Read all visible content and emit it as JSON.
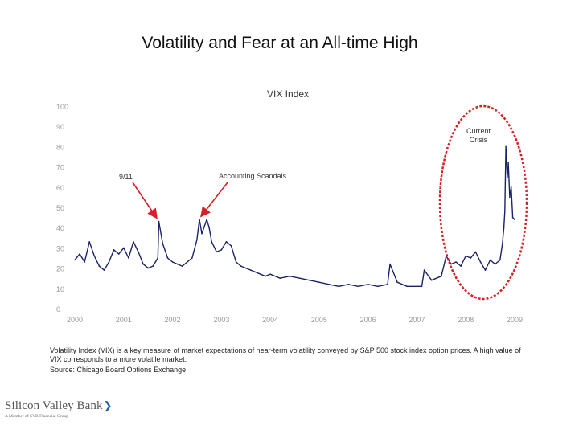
{
  "slide": {
    "title": "Volatility and Fear at an All-time High",
    "caption": "Volatility Index (VIX) is a key measure of market expectations of near-term volatility conveyed by S&P 500 stock index option prices.  A high value of VIX corresponds to a more volatile market.",
    "source": "Source: Chicago Board Options Exchange",
    "logo_name": "Silicon Valley Bank",
    "logo_tagline": "A Member of SVB Financial Group"
  },
  "colors": {
    "series_line": "#1a2366",
    "axis_text": "#9a9a9a",
    "arrow": "#d81f26",
    "highlight_ellipse": "#d81f26"
  },
  "chart_data": {
    "type": "line",
    "title": "VIX Index",
    "xlabel": "",
    "ylabel": "",
    "xlim": [
      2000.0,
      2009.0
    ],
    "ylim": [
      0,
      100
    ],
    "yticks": [
      0,
      10,
      20,
      30,
      40,
      50,
      60,
      70,
      80,
      90,
      100
    ],
    "xticks": [
      2000,
      2001,
      2002,
      2003,
      2004,
      2005,
      2006,
      2007,
      2008,
      2009
    ],
    "grid": false,
    "series": [
      {
        "x": [
          2000.0,
          2000.1,
          2000.2,
          2000.3,
          2000.4,
          2000.5,
          2000.6,
          2000.7,
          2000.8,
          2000.9,
          2001.0,
          2001.1,
          2001.2,
          2001.3,
          2001.4,
          2001.5,
          2001.6,
          2001.7,
          2001.72,
          2001.8,
          2001.9,
          2002.0,
          2002.1,
          2002.2,
          2002.3,
          2002.4,
          2002.5,
          2002.55,
          2002.6,
          2002.7,
          2002.75,
          2002.8,
          2002.9,
          2003.0,
          2003.1,
          2003.2,
          2003.3,
          2003.4,
          2003.5,
          2003.6,
          2003.7,
          2003.8,
          2003.9,
          2004.0,
          2004.2,
          2004.4,
          2004.6,
          2004.8,
          2005.0,
          2005.2,
          2005.4,
          2005.6,
          2005.8,
          2006.0,
          2006.2,
          2006.4,
          2006.45,
          2006.6,
          2006.8,
          2007.0,
          2007.1,
          2007.15,
          2007.3,
          2007.5,
          2007.6,
          2007.7,
          2007.8,
          2007.9,
          2008.0,
          2008.1,
          2008.2,
          2008.3,
          2008.4,
          2008.5,
          2008.6,
          2008.7,
          2008.75,
          2008.78,
          2008.8,
          2008.82,
          2008.85,
          2008.87,
          2008.9,
          2008.93,
          2008.96,
          2009.0
        ],
        "values": [
          24,
          27,
          23,
          33,
          26,
          21,
          19,
          23,
          29,
          27,
          30,
          25,
          33,
          28,
          22,
          20,
          21,
          25,
          43,
          32,
          25,
          23,
          22,
          21,
          23,
          25,
          34,
          44,
          37,
          44,
          40,
          33,
          28,
          29,
          33,
          31,
          23,
          21,
          20,
          19,
          18,
          17,
          16,
          17,
          15,
          16,
          15,
          14,
          13,
          12,
          11,
          12,
          11,
          12,
          11,
          12,
          22,
          13,
          11,
          11,
          11,
          19,
          14,
          16,
          26,
          22,
          23,
          21,
          26,
          25,
          28,
          23,
          19,
          24,
          22,
          24,
          32,
          40,
          48,
          80,
          65,
          72,
          55,
          60,
          45,
          44
        ]
      }
    ],
    "annotations": [
      {
        "label": "9/11",
        "x": 2001.7,
        "y": 43
      },
      {
        "label": "Accounting Scandals",
        "x": 2002.6,
        "y": 45
      },
      {
        "label": "Current Crisis",
        "x": 2008.85,
        "y": 62
      }
    ]
  }
}
